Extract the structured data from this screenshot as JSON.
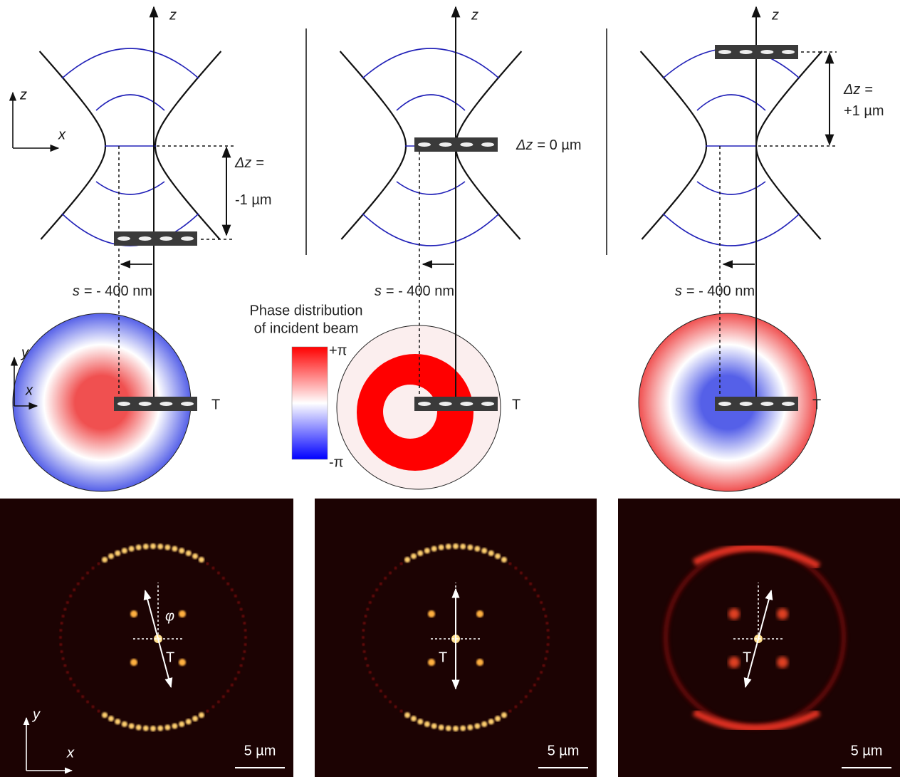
{
  "panels": [
    {
      "axis_label": "z",
      "delta_z": {
        "symbol": "Δz",
        "lines": [
          "=",
          "-1 µm"
        ]
      },
      "shift": {
        "symbol": "s",
        "text": "= - 400 nm"
      },
      "target_label": "T",
      "image": {
        "angle_label": "φ",
        "target_label": "T",
        "scale_bar": "5 µm"
      }
    },
    {
      "axis_label": "z",
      "delta_z": {
        "symbol": "Δz",
        "lines": [
          "= 0 µm"
        ]
      },
      "shift": {
        "symbol": "s",
        "text": "= - 400 nm"
      },
      "target_label": "T",
      "image": {
        "target_label": "T",
        "scale_bar": "5 µm"
      }
    },
    {
      "axis_label": "z",
      "delta_z": {
        "symbol": "Δz",
        "lines": [
          "=",
          "+1 µm"
        ]
      },
      "shift": {
        "symbol": "s",
        "text": "= - 400 nm"
      },
      "target_label": "T",
      "image": {
        "target_label": "T",
        "scale_bar": "5 µm"
      }
    }
  ],
  "axes": {
    "top": {
      "vertical": "z",
      "horizontal": "x"
    },
    "middle": {
      "vertical": "y",
      "horizontal": "x"
    },
    "bottom": {
      "vertical": "y",
      "horizontal": "x"
    }
  },
  "colorbar": {
    "title": [
      "Phase distribution",
      "of incident beam"
    ],
    "max": "+π",
    "min": "-π"
  }
}
